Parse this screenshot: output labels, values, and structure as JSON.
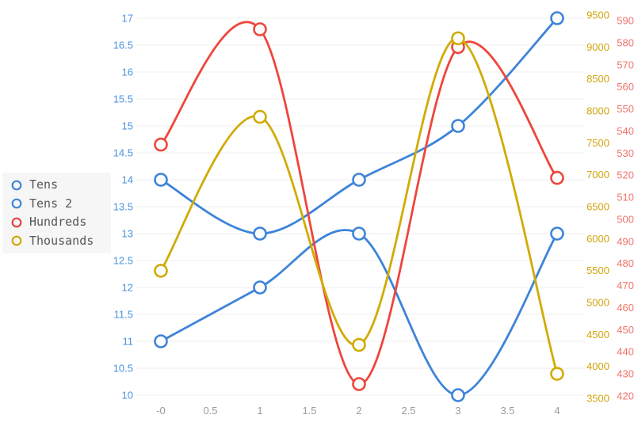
{
  "chart_data": {
    "type": "line",
    "x": [
      0,
      1,
      2,
      3,
      4
    ],
    "x_tick_labels": [
      "-0",
      "0.5",
      "1",
      "1.5",
      "2",
      "2.5",
      "3",
      "3.5",
      "4"
    ],
    "axes": {
      "left": {
        "min": 10,
        "max": 17,
        "step": 0.5,
        "label_color": "#4a91e0",
        "tick_labels": [
          "17",
          "16.5",
          "16",
          "15.5",
          "15",
          "14.5",
          "14",
          "13.5",
          "13",
          "12.5",
          "12",
          "11.5",
          "11",
          "10.5",
          "10"
        ]
      },
      "right_thousands": {
        "min": 3500,
        "max": 9500,
        "step": 500,
        "label_color": "#d1a40e",
        "tick_labels": [
          "9500",
          "9000",
          "8500",
          "8000",
          "7500",
          "7000",
          "6500",
          "6000",
          "5500",
          "5000",
          "4500",
          "4000",
          "3500"
        ]
      },
      "right_hundreds": {
        "min": 420,
        "max": 590,
        "step": 10,
        "label_color": "#f0736b",
        "tick_labels": [
          "590",
          "580",
          "570",
          "560",
          "550",
          "540",
          "530",
          "520",
          "510",
          "500",
          "490",
          "480",
          "470",
          "460",
          "450",
          "440",
          "430",
          "420"
        ]
      }
    },
    "series": [
      {
        "name": "Tens",
        "axis": "left",
        "color": "#3d84d8",
        "values": [
          14,
          13,
          14,
          15,
          17
        ]
      },
      {
        "name": "Tens 2",
        "axis": "left",
        "color": "#3d84d8",
        "values": [
          11,
          12,
          13,
          10,
          13
        ]
      },
      {
        "name": "Hundreds",
        "axis": "right_hundreds",
        "color": "#ee463c",
        "values": [
          533,
          585,
          425,
          577,
          518
        ]
      },
      {
        "name": "Thousands",
        "axis": "right_thousands",
        "color": "#d1ab05",
        "values": [
          5480,
          7930,
          4300,
          9180,
          3840
        ]
      }
    ],
    "legend_position": "left-middle",
    "grid": "horizontal-only"
  },
  "legend": {
    "items": [
      {
        "label": "Tens",
        "color": "#3d84d8"
      },
      {
        "label": "Tens 2",
        "color": "#3d84d8"
      },
      {
        "label": "Hundreds",
        "color": "#e6413c"
      },
      {
        "label": "Thousands",
        "color": "#d1a800"
      }
    ]
  },
  "colors": {
    "background": "#ffffff",
    "grid": "#efefef",
    "x_label": "#9b9b9b",
    "marker_fill": "#fdfdfd",
    "legend_bg": "#f6f6f6",
    "legend_text": "#565656"
  }
}
